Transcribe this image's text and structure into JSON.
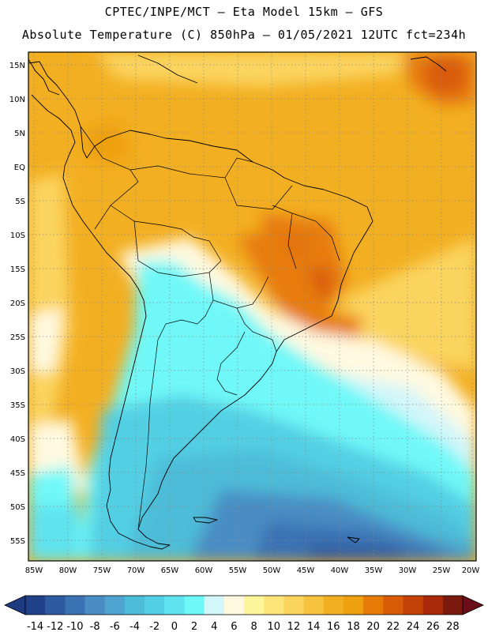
{
  "title_line1": "CPTEC/INPE/MCT –  Eta Model 15km – GFS",
  "title_line2": "Absolute Temperature (C) 850hPa – 01/05/2021 12UTC fct=234h",
  "lat_labels": [
    "15N",
    "10N",
    "5N",
    "EQ",
    "5S",
    "10S",
    "15S",
    "20S",
    "25S",
    "30S",
    "35S",
    "40S",
    "45S",
    "50S",
    "55S"
  ],
  "lon_labels": [
    "85W",
    "80W",
    "75W",
    "70W",
    "65W",
    "60W",
    "55W",
    "50W",
    "45W",
    "40W",
    "35W",
    "30W",
    "25W",
    "20W"
  ],
  "colorbar": {
    "labels": [
      "-14",
      "-12",
      "-10",
      "-8",
      "-6",
      "-4",
      "-2",
      "0",
      "2",
      "4",
      "6",
      "8",
      "10",
      "12",
      "14",
      "16",
      "18",
      "20",
      "22",
      "24",
      "26",
      "28"
    ],
    "colors": [
      "#21428a",
      "#2d5aa0",
      "#3a72b4",
      "#4a8dc4",
      "#4fa4d0",
      "#4dbcd8",
      "#52cfe4",
      "#5fe3ef",
      "#6ff8f8",
      "#d2f6f9",
      "#fff9e0",
      "#fef59a",
      "#fde57a",
      "#fbd45e",
      "#f6c240",
      "#f3af22",
      "#eea00f",
      "#e77b08",
      "#d95b07",
      "#c44208",
      "#a82a0a",
      "#7a1a0e"
    ],
    "under_color": "#1e3a80",
    "over_color": "#6b0e1a"
  }
}
